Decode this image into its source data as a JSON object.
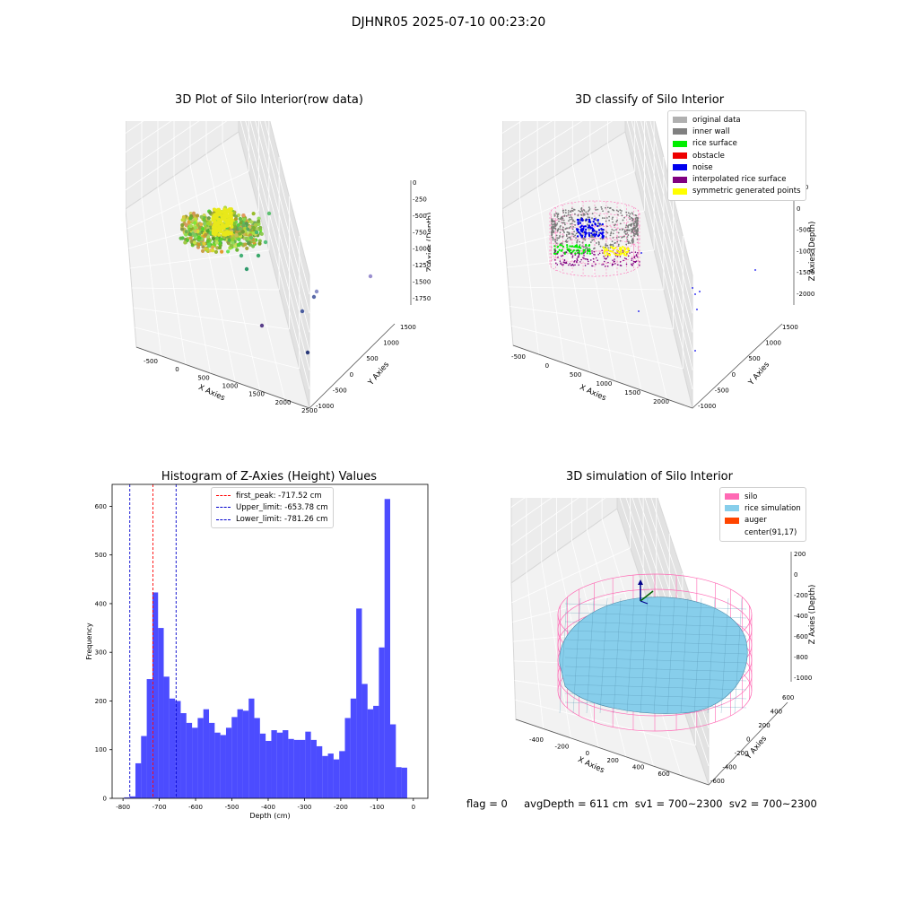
{
  "figure": {
    "suptitle": "DJHNR05 2025-07-10 00:23:20",
    "footer": "flag = 0     avgDepth = 611 cm  sv1 = 700~2300  sv2 = 700~2300"
  },
  "panels": {
    "p1": {
      "title": "3D Plot of Silo Interior(row data)",
      "xlabel": "X Axies",
      "ylabel": "Y Axies",
      "zlabel": "Z Axies (Depth)",
      "xticks": [
        "-500",
        "0",
        "500",
        "1000",
        "1500",
        "2000",
        "2500"
      ],
      "yticks": [
        "-1000",
        "-500",
        "0",
        "500",
        "1000",
        "1500"
      ],
      "zticks": [
        "0",
        "-250",
        "-500",
        "-750",
        "-1000",
        "-1250",
        "-1500",
        "-1750"
      ]
    },
    "p2": {
      "title": "3D classify of Silo Interior",
      "xlabel": "X Axies",
      "ylabel": "Y Axies",
      "zlabel": "Z Axies (Depth)",
      "xticks": [
        "-500",
        "0",
        "500",
        "1000",
        "1500",
        "2000"
      ],
      "yticks": [
        "-1000",
        "-500",
        "0",
        "500",
        "1000",
        "1500"
      ],
      "zticks": [
        "500",
        "0",
        "-500",
        "-1000",
        "-1500",
        "-2000"
      ],
      "legend": [
        {
          "label": "original data",
          "color": "#b0b0b0"
        },
        {
          "label": "inner wall",
          "color": "#808080"
        },
        {
          "label": "rice surface",
          "color": "#00ee00"
        },
        {
          "label": "obstacle",
          "color": "#ee0000"
        },
        {
          "label": "noise",
          "color": "#0000ee"
        },
        {
          "label": "interpolated rice surface",
          "color": "#800080"
        },
        {
          "label": "symmetric generated points",
          "color": "#ffff00"
        }
      ]
    },
    "p4": {
      "title": "3D simulation of Silo Interior",
      "xlabel": "X Axies",
      "ylabel": "Y Axies",
      "zlabel": "Z Axies (Depth)",
      "xticks": [
        "-400",
        "-200",
        "0",
        "200",
        "400",
        "600"
      ],
      "yticks": [
        "-600",
        "-400",
        "-200",
        "0",
        "200",
        "400",
        "600"
      ],
      "zticks": [
        "200",
        "0",
        "-200",
        "-400",
        "-600",
        "-800",
        "-1000"
      ],
      "legend": [
        {
          "label": "silo",
          "color": "#ff69b4"
        },
        {
          "label": "rice simulation",
          "color": "#87ceeb"
        },
        {
          "label": "auger",
          "color": "#ff4500"
        },
        {
          "label": "center(91,17)",
          "color": "#ffffff"
        }
      ]
    }
  },
  "chart_data": {
    "type": "bar",
    "title": "Histogram of Z-Axies (Height) Values",
    "xlabel": "Depth (cm)",
    "ylabel": "Frequency",
    "xlim": [
      -830,
      40
    ],
    "ylim": [
      0,
      645
    ],
    "xticks": [
      -800,
      -700,
      -600,
      -500,
      -400,
      -300,
      -200,
      -100,
      0
    ],
    "yticks": [
      0,
      100,
      200,
      300,
      400,
      500,
      600
    ],
    "bin_start": -797.0,
    "bin_width": 15.6,
    "values": [
      2,
      4,
      72,
      128,
      245,
      423,
      350,
      250,
      205,
      200,
      175,
      155,
      145,
      165,
      183,
      155,
      135,
      130,
      145,
      167,
      183,
      180,
      205,
      165,
      133,
      118,
      140,
      135,
      140,
      122,
      120,
      120,
      137,
      120,
      107,
      87,
      92,
      80,
      97,
      165,
      205,
      390,
      235,
      183,
      190,
      310,
      615,
      152,
      64,
      63
    ],
    "color": "#0000ff",
    "lines": [
      {
        "label": "first_peak: -717.52 cm",
        "x": -717.52,
        "color": "#ff0000"
      },
      {
        "label": "Upper_limit: -653.78 cm",
        "x": -653.78,
        "color": "#0000cc"
      },
      {
        "label": "Lower_limit: -781.26 cm",
        "x": -781.26,
        "color": "#0000cc"
      }
    ],
    "legend_position": "top-center"
  }
}
